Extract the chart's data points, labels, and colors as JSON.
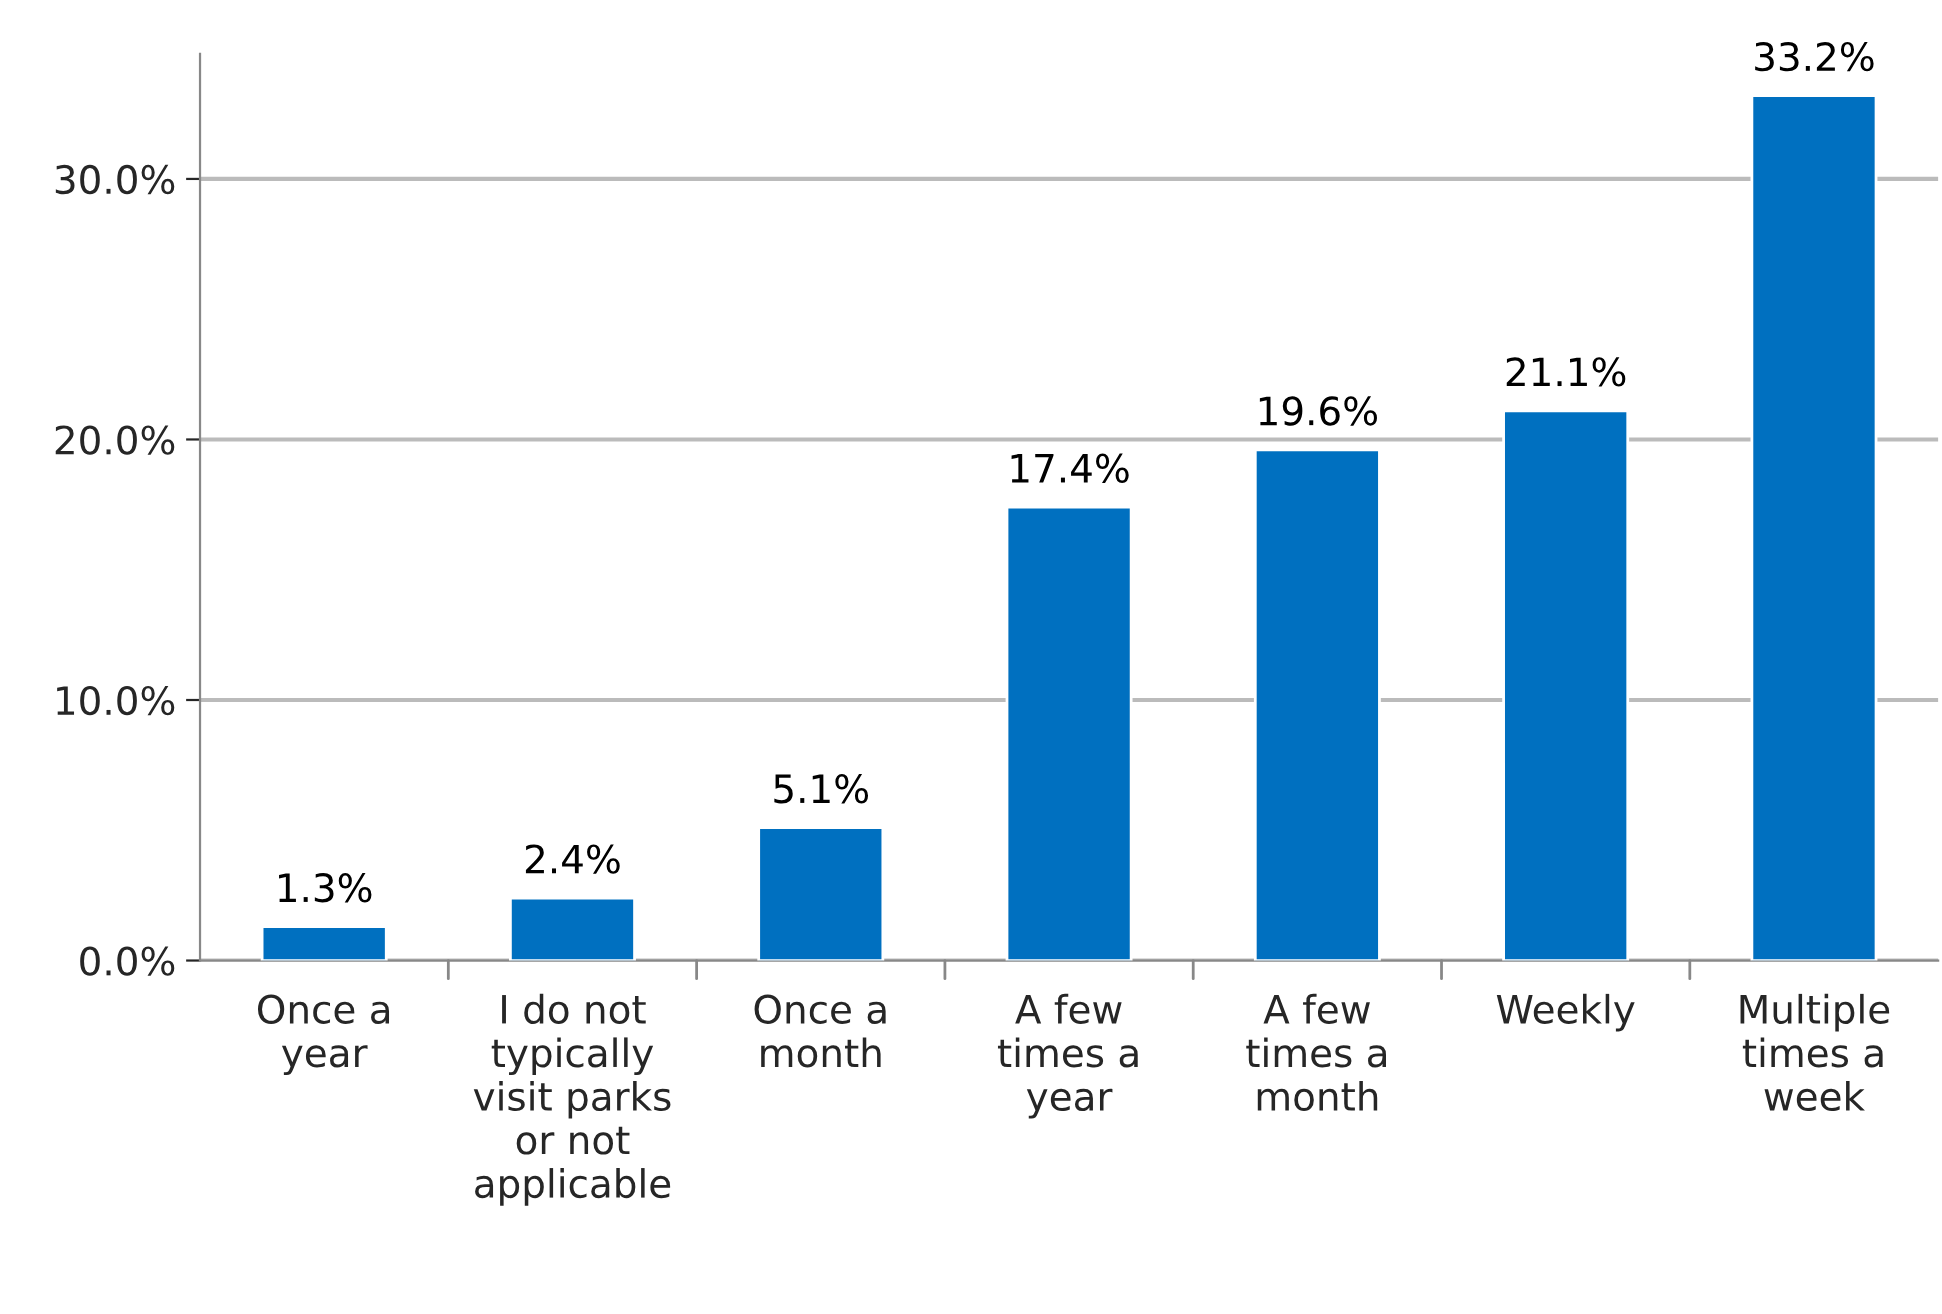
{
  "chart_data": {
    "type": "bar",
    "categories": [
      "Once a\nyear",
      "I do not\ntypically\nvisit parks\nor not\napplicable",
      "Once a\nmonth",
      "A few\ntimes a\nyear",
      "A few\ntimes a\nmonth",
      "Weekly",
      "Multiple\ntimes a\nweek"
    ],
    "values": [
      1.3,
      2.4,
      5.1,
      17.4,
      19.6,
      21.1,
      33.2
    ],
    "value_labels": [
      "1.3%",
      "2.4%",
      "5.1%",
      "17.4%",
      "19.6%",
      "21.1%",
      "33.2%"
    ],
    "color": "#0070c0",
    "ylim": [
      0,
      34.8
    ],
    "yticks": [
      {
        "value": 0,
        "label": "0.0%"
      },
      {
        "value": 10,
        "label": "10.0%"
      },
      {
        "value": 20,
        "label": "20.0%"
      },
      {
        "value": 30,
        "label": "30.0%"
      }
    ],
    "grid": "y",
    "legend": false
  }
}
